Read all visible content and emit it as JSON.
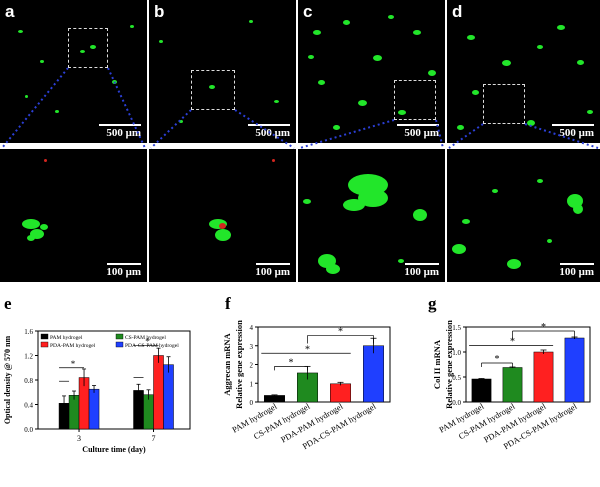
{
  "panels": {
    "a": {
      "letter": "a",
      "scale": "500 μm"
    },
    "b": {
      "letter": "b",
      "scale": "500 μm"
    },
    "c": {
      "letter": "c",
      "scale": "500 μm"
    },
    "d": {
      "letter": "d",
      "scale": "500 μm"
    },
    "zoom_scale": "100 μm"
  },
  "colors": {
    "pam": "#000000",
    "cs": "#1f8a1f",
    "pda": "#ff2020",
    "pdacs": "#1f3fff",
    "cell_green": "#22e62a",
    "cell_red": "#d3261f"
  },
  "chart_data": [
    {
      "panel": "e",
      "type": "bar",
      "ylabel": "Optical density @ 570 nm",
      "xlabel": "Culture time (day)",
      "categories": [
        "3",
        "7"
      ],
      "ylim": [
        0.0,
        1.6
      ],
      "yticks": [
        "0.0",
        "0.4",
        "0.8",
        "1.2",
        "1.6"
      ],
      "legend": [
        "PAM hydrogel",
        "CS-PAM hydrogel",
        "PDA-PAM hydrogel",
        "PDA-CS-PAM hydrogel"
      ],
      "series": [
        {
          "name": "PAM hydrogel",
          "values": [
            0.42,
            0.63
          ],
          "err": [
            0.12,
            0.1
          ]
        },
        {
          "name": "CS-PAM hydrogel",
          "values": [
            0.55,
            0.56
          ],
          "err": [
            0.07,
            0.08
          ]
        },
        {
          "name": "PDA-PAM hydrogel",
          "values": [
            0.84,
            1.2
          ],
          "err": [
            0.14,
            0.12
          ]
        },
        {
          "name": "PDA-CS-PAM hydrogel",
          "values": [
            0.65,
            1.05
          ],
          "err": [
            0.06,
            0.13
          ]
        }
      ],
      "sig": "*"
    },
    {
      "panel": "f",
      "type": "bar",
      "ylabel_top": "Aggrecan mRNA",
      "ylabel": "Relative gene expression",
      "categories": [
        "PAM hydrogel",
        "CS-PAM hydrogel",
        "PDA-PAM hydrogel",
        "PDA-CS-PAM hydrogel"
      ],
      "values": [
        0.35,
        1.55,
        0.97,
        3.0
      ],
      "err": [
        0.03,
        0.35,
        0.08,
        0.4
      ],
      "ylim": [
        0,
        4
      ],
      "yticks": [
        "0",
        "1",
        "2",
        "3",
        "4"
      ],
      "sig": "*"
    },
    {
      "panel": "g",
      "type": "bar",
      "ylabel_top": "Col II mRNA",
      "ylabel": "Relative gene expression",
      "categories": [
        "PAM hydrogel",
        "CS-PAM hydrogel",
        "PDA-PAM hydrogel",
        "PDA-CS-PAM hydrogel"
      ],
      "values": [
        0.46,
        0.69,
        1.0,
        1.28
      ],
      "err": [
        0.01,
        0.01,
        0.04,
        0.02
      ],
      "ylim": [
        0,
        1.5
      ],
      "yticks": [
        "0.0",
        "0.5",
        "1.0",
        "1.5"
      ],
      "sig": "*"
    }
  ],
  "letters": {
    "e": "e",
    "f": "f",
    "g": "g"
  }
}
